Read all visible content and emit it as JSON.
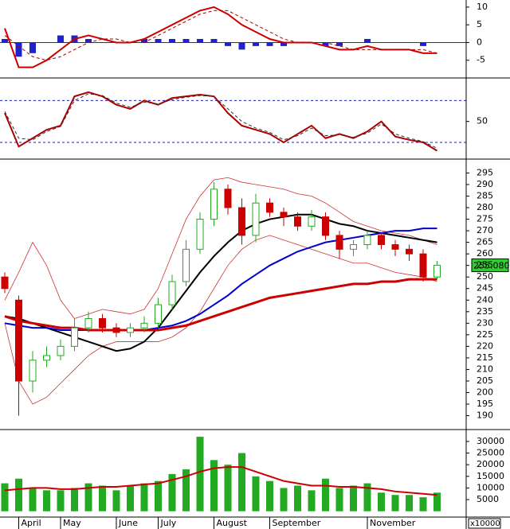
{
  "chart_data": [
    {
      "type": "macd",
      "ylim": [
        -10,
        12
      ],
      "yticks": [
        10,
        5,
        0,
        -5
      ],
      "hist_color": "#2222cc",
      "histogram": [
        1,
        -4,
        -3,
        0,
        2,
        2,
        1,
        0,
        0,
        0,
        1,
        1,
        1,
        1,
        1,
        1,
        -1,
        -2,
        -1,
        -1,
        -1,
        0,
        0,
        -1,
        -1,
        0,
        1,
        0,
        0,
        0,
        -1,
        0
      ],
      "series": [
        {
          "color": "#cc0000",
          "values": [
            4,
            -7,
            -7,
            -5,
            -2,
            1,
            2,
            1,
            0,
            0,
            1,
            3,
            5,
            7,
            9,
            10,
            8,
            5,
            3,
            1,
            0,
            0,
            0,
            -1,
            -2,
            -2,
            -1,
            -2,
            -2,
            -2,
            -3,
            -3
          ]
        },
        {
          "color": "#aa0000",
          "dashed": true,
          "values": [
            2,
            -1,
            -4,
            -5,
            -4,
            -2,
            0,
            1,
            1,
            0,
            0,
            2,
            4,
            6,
            8,
            9,
            9,
            7,
            5,
            3,
            1,
            0,
            0,
            0,
            -1,
            -2,
            -2,
            -2,
            -2,
            -2,
            -2,
            -3
          ]
        }
      ]
    },
    {
      "type": "oscillator",
      "ylim": [
        5,
        102
      ],
      "yticks": [
        50
      ],
      "levels": [
        75,
        25
      ],
      "level_color": "#2222aa",
      "series": [
        {
          "color": "#aa0000",
          "values": [
            60,
            20,
            30,
            40,
            45,
            80,
            85,
            80,
            70,
            65,
            75,
            70,
            78,
            80,
            82,
            80,
            60,
            45,
            40,
            35,
            25,
            35,
            45,
            30,
            35,
            30,
            38,
            50,
            32,
            28,
            25,
            15
          ]
        },
        {
          "color": "#333333",
          "dashed": true,
          "values": [
            62,
            30,
            28,
            38,
            44,
            75,
            83,
            81,
            72,
            67,
            73,
            71,
            76,
            79,
            81,
            80,
            65,
            50,
            42,
            37,
            28,
            33,
            42,
            33,
            34,
            31,
            36,
            47,
            35,
            30,
            26,
            18
          ]
        }
      ]
    },
    {
      "type": "candlestick",
      "ylim": [
        184,
        301
      ],
      "yticks": [
        190,
        195,
        200,
        205,
        210,
        215,
        220,
        225,
        230,
        235,
        240,
        245,
        250,
        255,
        260,
        265,
        270,
        275,
        280,
        285,
        290,
        295
      ],
      "up_color": "#22aa22",
      "down_color": "#cc0000",
      "open": [
        250,
        240,
        205,
        214,
        216,
        220,
        228,
        232,
        228,
        226,
        228,
        230,
        238,
        248,
        262,
        275,
        288,
        280,
        268,
        282,
        278,
        276,
        272,
        276,
        268,
        262,
        264,
        268,
        264,
        262,
        260,
        250
      ],
      "high": [
        252,
        242,
        218,
        220,
        223,
        232,
        235,
        234,
        230,
        230,
        233,
        241,
        251,
        266,
        278,
        291,
        290,
        284,
        286,
        284,
        280,
        278,
        279,
        278,
        270,
        266,
        270,
        269,
        266,
        264,
        262,
        257
      ],
      "low": [
        243,
        190,
        200,
        211,
        214,
        218,
        226,
        226,
        224,
        224,
        226,
        228,
        236,
        246,
        260,
        272,
        277,
        264,
        265,
        276,
        272,
        270,
        270,
        266,
        258,
        259,
        262,
        262,
        259,
        257,
        248,
        249
      ],
      "close": [
        245,
        205,
        214,
        216,
        220,
        228,
        232,
        228,
        226,
        228,
        230,
        238,
        248,
        262,
        275,
        288,
        280,
        268,
        282,
        278,
        276,
        272,
        276,
        268,
        262,
        264,
        268,
        264,
        262,
        260,
        250,
        255.08
      ],
      "last_price": {
        "value": 255.08,
        "label": "255.080"
      },
      "series": [
        {
          "color": "#cc3333",
          "width": 0.8,
          "values": [
            240,
            252,
            265,
            255,
            240,
            232,
            234,
            236,
            235,
            234,
            236,
            245,
            260,
            275,
            285,
            292,
            293,
            291,
            290,
            289,
            288,
            286,
            285,
            282,
            278,
            274,
            272,
            270,
            269,
            268,
            266,
            264
          ]
        },
        {
          "color": "#cc3333",
          "width": 0.8,
          "values": [
            230,
            205,
            195,
            198,
            204,
            210,
            216,
            220,
            222,
            222,
            222,
            222,
            224,
            228,
            235,
            245,
            255,
            262,
            266,
            268,
            266,
            264,
            262,
            260,
            258,
            256,
            256,
            254,
            252,
            251,
            250,
            248
          ]
        },
        {
          "color": "#000000",
          "width": 2,
          "values": [
            233,
            232,
            230,
            228,
            226,
            224,
            222,
            220,
            218,
            219,
            222,
            228,
            236,
            244,
            252,
            259,
            265,
            270,
            273,
            275,
            276,
            277,
            277,
            275,
            273,
            272,
            270,
            269,
            268,
            267,
            266,
            265
          ]
        },
        {
          "color": "#0000cc",
          "width": 2,
          "values": [
            230,
            229,
            228,
            228,
            227,
            227,
            227,
            227,
            227,
            227,
            227,
            228,
            229,
            231,
            234,
            238,
            242,
            247,
            251,
            255,
            258,
            261,
            263,
            265,
            266,
            267,
            268,
            269,
            270,
            270,
            271,
            271
          ]
        },
        {
          "color": "#cc0000",
          "width": 3,
          "values": [
            233,
            231,
            230,
            229,
            228,
            228,
            227,
            227,
            227,
            227,
            227,
            227,
            228,
            229,
            231,
            233,
            235,
            237,
            239,
            241,
            242,
            243,
            244,
            245,
            246,
            247,
            247,
            248,
            248,
            249,
            249,
            249
          ]
        }
      ]
    },
    {
      "type": "volume",
      "ylim": [
        -2500,
        35100
      ],
      "yticks": [
        5000,
        10000,
        15000,
        20000,
        25000,
        30000
      ],
      "unit_label": "x10000",
      "bar_color": "#22aa22",
      "categories": [
        null,
        "April",
        null,
        null,
        "May",
        null,
        null,
        null,
        "June",
        null,
        null,
        "July",
        null,
        null,
        null,
        "August",
        null,
        null,
        null,
        "September",
        null,
        null,
        null,
        null,
        null,
        null,
        "November",
        null,
        null,
        null,
        null,
        null
      ],
      "values": [
        12000,
        14000,
        10000,
        9000,
        9000,
        10000,
        12000,
        11000,
        9000,
        11000,
        12000,
        13000,
        16000,
        18000,
        32000,
        22000,
        20000,
        25000,
        15000,
        13000,
        10000,
        11000,
        9000,
        14000,
        10000,
        11000,
        12000,
        8000,
        7000,
        7000,
        6000,
        8000
      ],
      "series": [
        {
          "color": "#cc0000",
          "values": [
            9000,
            9500,
            10000,
            10000,
            9500,
            9500,
            10000,
            10500,
            10500,
            11000,
            11500,
            12000,
            13500,
            15000,
            17000,
            18500,
            19000,
            19000,
            17000,
            15000,
            13000,
            12000,
            11000,
            11000,
            10500,
            10500,
            10000,
            9500,
            8500,
            8000,
            7500,
            7000
          ]
        }
      ]
    }
  ]
}
